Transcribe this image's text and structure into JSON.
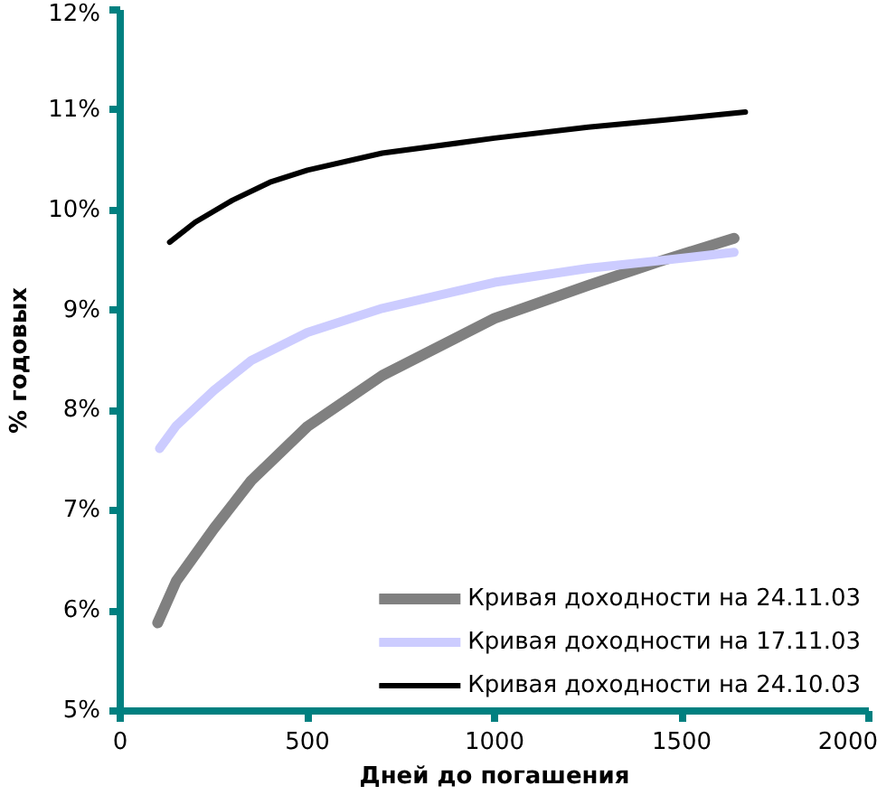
{
  "chart_data": {
    "type": "line",
    "xlabel": "Дней до погашения",
    "ylabel": "% годовых",
    "xlim": [
      0,
      2000
    ],
    "xticks": [
      0,
      500,
      1000,
      1500,
      2000
    ],
    "ylim": [
      5,
      12
    ],
    "yticks": [
      {
        "value": 5,
        "label": "5%"
      },
      {
        "value": 6,
        "label": "6%"
      },
      {
        "value": 7,
        "label": "7%"
      },
      {
        "value": 8,
        "label": "8%"
      },
      {
        "value": 9,
        "label": "9%"
      },
      {
        "value": 10,
        "label": "10%"
      },
      {
        "value": 11,
        "label": "11%"
      },
      {
        "value": 12,
        "label": "12%"
      }
    ],
    "grid": false,
    "legend": "bottom right",
    "marker": "none",
    "line_style": "solid",
    "series": [
      {
        "name": "Кривая доходности на 24.11.03",
        "color": "#808080",
        "x": [
          100,
          150,
          250,
          350,
          500,
          700,
          1000,
          1250,
          1450,
          1640
        ],
        "values": [
          5.88,
          6.3,
          6.82,
          7.3,
          7.84,
          8.35,
          8.92,
          9.25,
          9.5,
          9.72
        ]
      },
      {
        "name": "Кривая доходности на 17.11.03",
        "color": "#ccccff",
        "x": [
          105,
          150,
          250,
          350,
          500,
          700,
          1000,
          1250,
          1450,
          1640
        ],
        "values": [
          7.62,
          7.85,
          8.2,
          8.5,
          8.78,
          9.02,
          9.28,
          9.42,
          9.5,
          9.58
        ]
      },
      {
        "name": "Кривая доходности на 24.10.03",
        "color": "#000000",
        "x": [
          132,
          200,
          300,
          400,
          500,
          700,
          1000,
          1250,
          1450,
          1670
        ],
        "values": [
          9.68,
          9.88,
          10.1,
          10.28,
          10.4,
          10.57,
          10.72,
          10.83,
          10.9,
          10.98
        ]
      }
    ]
  }
}
